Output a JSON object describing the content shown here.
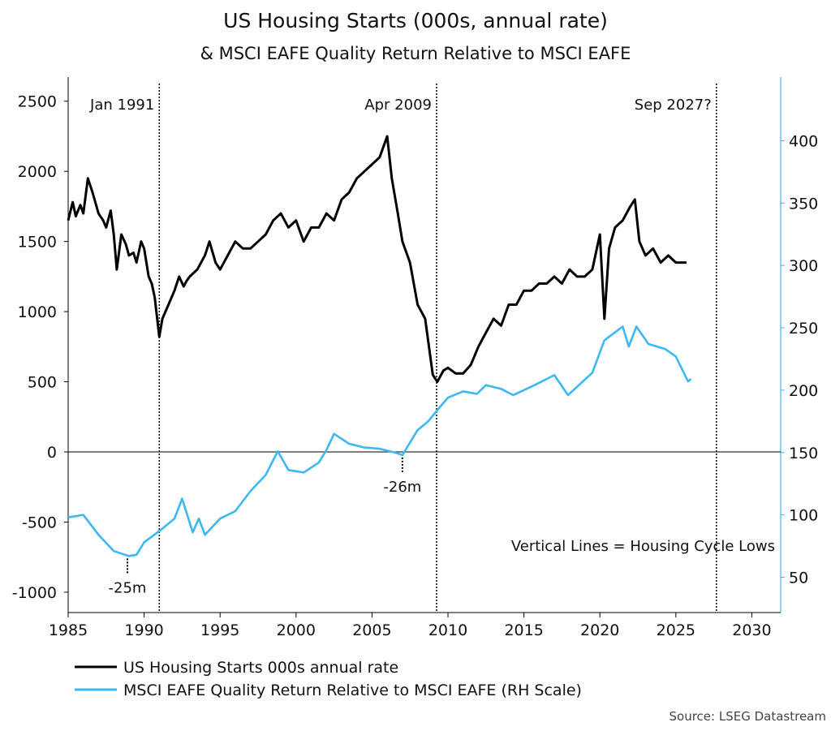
{
  "chart_data": {
    "type": "line",
    "title": "US Housing Starts (000s, annual rate)",
    "subtitle": "& MSCI EAFE Quality Return Relative to MSCI EAFE",
    "source": "Source: LSEG Datastream",
    "x_axis": {
      "range": [
        1985,
        2031.9
      ],
      "ticks": [
        "1985",
        "1990",
        "1995",
        "2000",
        "2005",
        "2010",
        "2015",
        "2020",
        "2025",
        "2030"
      ]
    },
    "y_left": {
      "range": [
        -1145,
        2672
      ],
      "ticks": [
        "2500",
        "2000",
        "1500",
        "1000",
        "500",
        "0",
        "-500",
        "-1000"
      ]
    },
    "y_right": {
      "range": [
        21.7,
        451
      ],
      "ticks": [
        "400",
        "350",
        "300",
        "250",
        "200",
        "150",
        "100",
        "50"
      ],
      "color": "#3db8f5"
    },
    "grid": false,
    "zero_line": 0,
    "legend_placement": "bottom",
    "series": [
      {
        "name": "US Housing Starts 000s annual rate",
        "axis": "left",
        "color": "#000000",
        "x": [
          1985,
          1985.3,
          1985.5,
          1985.8,
          1986,
          1986.3,
          1986.6,
          1987,
          1987.3,
          1987.5,
          1987.8,
          1988,
          1988.2,
          1988.5,
          1988.8,
          1989,
          1989.3,
          1989.5,
          1989.8,
          1990,
          1990.3,
          1990.5,
          1990.7,
          1991.0,
          1991.2,
          1991.6,
          1992,
          1992.3,
          1992.6,
          1992.8,
          1993,
          1993.5,
          1994,
          1994.3,
          1994.7,
          1995,
          1995.5,
          1996,
          1996.5,
          1997,
          1997.5,
          1998,
          1998.5,
          1999,
          1999.5,
          2000,
          2000.5,
          2001,
          2001.5,
          2002,
          2002.5,
          2003,
          2003.5,
          2004,
          2004.5,
          2005,
          2005.5,
          2006,
          2006.3,
          2006.7,
          2007,
          2007.5,
          2008,
          2008.5,
          2009,
          2009.3,
          2009.7,
          2010,
          2010.5,
          2011,
          2011.5,
          2012,
          2012.5,
          2013,
          2013.5,
          2014,
          2014.5,
          2015,
          2015.5,
          2016,
          2016.5,
          2017,
          2017.5,
          2018,
          2018.5,
          2019,
          2019.5,
          2020,
          2020.3,
          2020.6,
          2021,
          2021.5,
          2022,
          2022.3,
          2022.6,
          2023,
          2023.5,
          2024,
          2024.5,
          2025,
          2025.7
        ],
        "y": [
          1650,
          1780,
          1680,
          1760,
          1700,
          1950,
          1850,
          1700,
          1650,
          1600,
          1720,
          1550,
          1300,
          1550,
          1480,
          1400,
          1420,
          1350,
          1500,
          1450,
          1250,
          1200,
          1100,
          820,
          950,
          1050,
          1150,
          1250,
          1180,
          1220,
          1250,
          1300,
          1400,
          1500,
          1350,
          1300,
          1400,
          1500,
          1450,
          1450,
          1500,
          1550,
          1650,
          1700,
          1600,
          1650,
          1500,
          1600,
          1600,
          1700,
          1650,
          1800,
          1850,
          1950,
          2000,
          2050,
          2100,
          2250,
          1950,
          1700,
          1500,
          1350,
          1050,
          950,
          550,
          500,
          580,
          600,
          560,
          560,
          620,
          750,
          850,
          950,
          900,
          1050,
          1050,
          1150,
          1150,
          1200,
          1200,
          1250,
          1200,
          1300,
          1250,
          1250,
          1300,
          1550,
          950,
          1450,
          1600,
          1650,
          1750,
          1800,
          1500,
          1400,
          1450,
          1350,
          1400,
          1350,
          1350
        ]
      },
      {
        "name": "MSCI EAFE Quality Return Relative to MSCI EAFE (RH Scale)",
        "axis": "right",
        "color": "#3db8f5",
        "x": [
          1985,
          1986,
          1987,
          1988,
          1989,
          1989.5,
          1990,
          1991,
          1992,
          1992.5,
          1993.2,
          1993.6,
          1994,
          1995,
          1996,
          1997,
          1998,
          1998.8,
          1999.5,
          2000.5,
          2001.5,
          2002,
          2002.5,
          2003.5,
          2004.5,
          2005.5,
          2006.5,
          2007,
          2007.5,
          2008,
          2008.7,
          2009.3,
          2010,
          2011,
          2011.9,
          2012.5,
          2013.5,
          2014.3,
          2015.7,
          2017,
          2017.9,
          2019.5,
          2020.3,
          2021.5,
          2021.9,
          2022.4,
          2023.2,
          2024.3,
          2025,
          2025.8,
          2026
        ],
        "y": [
          98,
          100,
          84,
          71,
          67,
          68,
          78,
          87,
          97,
          113,
          86,
          97,
          84,
          97,
          103,
          119,
          132,
          151,
          136,
          134,
          142,
          152,
          165,
          157,
          154,
          153,
          150,
          148,
          158,
          168,
          175,
          184,
          194,
          199,
          197,
          204,
          201,
          196,
          204,
          212,
          196,
          214,
          240,
          251,
          235,
          251,
          237,
          233,
          227,
          207,
          209
        ]
      }
    ],
    "vertical_lines": [
      {
        "label": "Jan 1991",
        "x": 1991.0
      },
      {
        "label": "Apr 2009",
        "x": 2009.25
      },
      {
        "label": "Sep 2027?",
        "x": 2027.67
      }
    ],
    "annotations": [
      {
        "text": "-25m",
        "x": 1988.9,
        "y_right": 67
      },
      {
        "text": "-26m",
        "x": 2007.0,
        "y_right": 148
      },
      {
        "text": "Vertical Lines = Housing Cycle Lows"
      }
    ]
  }
}
